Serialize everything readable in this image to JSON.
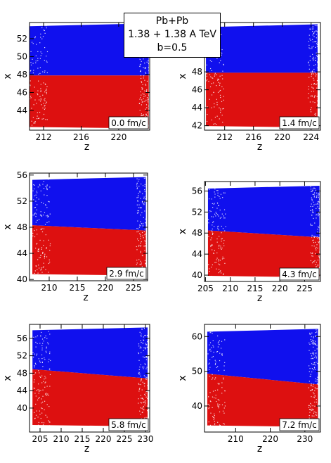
{
  "title_box": {
    "line1": "Pb+Pb",
    "line2": "1.38 + 1.38 A TeV",
    "line3": "b=0.5"
  },
  "colors": {
    "upper": "#1010ee",
    "lower": "#dd1010",
    "frame": "#000000"
  },
  "chart_data": [
    {
      "type": "scatter",
      "time_label": "0.0 fm/c",
      "xlabel": "z",
      "ylabel": "x",
      "xlim": [
        210.5,
        223.3
      ],
      "ylim": [
        41.8,
        53.8
      ],
      "xticks": [
        212,
        216,
        220
      ],
      "yticks": [
        44,
        46,
        48,
        50,
        52
      ],
      "series": [
        {
          "color": "blue",
          "z_range": [
            210.5,
            223.2
          ],
          "x_range": [
            47.9,
            53.7
          ]
        },
        {
          "color": "red",
          "z_range": [
            210.5,
            223.2
          ],
          "x_range": [
            42.0,
            47.9
          ]
        }
      ]
    },
    {
      "type": "scatter",
      "time_label": "1.4 fm/c",
      "xlabel": "z",
      "ylabel": "x",
      "xlim": [
        209.2,
        225.3
      ],
      "ylim": [
        41.5,
        53.5
      ],
      "xticks": [
        212,
        216,
        220,
        224
      ],
      "yticks": [
        42,
        44,
        46,
        48,
        50
      ],
      "series": [
        {
          "color": "blue",
          "z_range": [
            209.4,
            224.9
          ],
          "x_range": [
            47.9,
            53.3
          ]
        },
        {
          "color": "red",
          "z_range": [
            209.4,
            224.9
          ],
          "x_range": [
            41.8,
            47.9
          ]
        }
      ]
    },
    {
      "type": "scatter",
      "time_label": "2.9 fm/c",
      "xlabel": "z",
      "ylabel": "x",
      "xlim": [
        206.5,
        227.5
      ],
      "ylim": [
        39.8,
        56.3
      ],
      "xticks": [
        210,
        215,
        220,
        225
      ],
      "yticks": [
        40,
        44,
        48,
        52,
        56
      ],
      "series": [
        {
          "color": "blue",
          "z_range": [
            207.0,
            227.2
          ],
          "x_range": [
            47.5,
            55.7
          ]
        },
        {
          "color": "red",
          "z_range": [
            207.0,
            227.2
          ],
          "x_range": [
            40.6,
            48.3
          ]
        }
      ]
    },
    {
      "type": "scatter",
      "time_label": "4.3 fm/c",
      "xlabel": "z",
      "ylabel": "x",
      "xlim": [
        204.8,
        228.2
      ],
      "ylim": [
        38.8,
        57.8
      ],
      "xticks": [
        205,
        210,
        215,
        220,
        225
      ],
      "yticks": [
        40,
        44,
        48,
        52,
        56
      ],
      "series": [
        {
          "color": "blue",
          "z_range": [
            205.5,
            228.0
          ],
          "x_range": [
            47.2,
            57.0
          ]
        },
        {
          "color": "red",
          "z_range": [
            205.5,
            228.0
          ],
          "x_range": [
            39.6,
            48.5
          ]
        }
      ]
    },
    {
      "type": "scatter",
      "time_label": "5.8 fm/c",
      "xlabel": "z",
      "ylabel": "x",
      "xlim": [
        202.5,
        231.0
      ],
      "ylim": [
        34.5,
        59.2
      ],
      "xticks": [
        205,
        210,
        215,
        220,
        225,
        230
      ],
      "yticks": [
        40,
        44,
        48,
        52,
        56
      ],
      "series": [
        {
          "color": "blue",
          "z_range": [
            203.2,
            230.5
          ],
          "x_range": [
            46.8,
            58.5
          ]
        },
        {
          "color": "red",
          "z_range": [
            203.2,
            230.5
          ],
          "x_range": [
            35.8,
            48.9
          ]
        }
      ]
    },
    {
      "type": "scatter",
      "time_label": "7.2 fm/c",
      "xlabel": "z",
      "ylabel": "x",
      "xlim": [
        201.0,
        234.5
      ],
      "ylim": [
        32.5,
        63.5
      ],
      "xticks": [
        210,
        220,
        230
      ],
      "yticks": [
        40,
        50,
        60
      ],
      "series": [
        {
          "color": "blue",
          "z_range": [
            201.8,
            233.8
          ],
          "x_range": [
            46.2,
            62.2
          ]
        },
        {
          "color": "red",
          "z_range": [
            201.8,
            233.8
          ],
          "x_range": [
            34.0,
            49.3
          ]
        }
      ]
    }
  ]
}
